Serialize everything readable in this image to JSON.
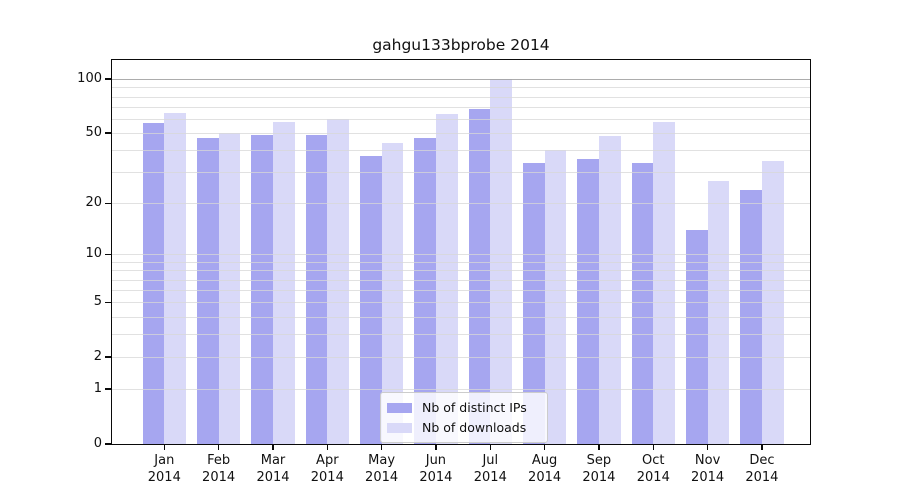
{
  "title": "gahgu133bprobe 2014",
  "chart_data": {
    "type": "bar",
    "title": "gahgu133bprobe 2014",
    "scale": "log1p",
    "categories": [
      "Jan 2014",
      "Feb 2014",
      "Mar 2014",
      "Apr 2014",
      "May 2014",
      "Jun 2014",
      "Jul 2014",
      "Aug 2014",
      "Sep 2014",
      "Oct 2014",
      "Nov 2014",
      "Dec 2014"
    ],
    "series": [
      {
        "name": "Nb of distinct IPs",
        "color": "#a6a6f0",
        "values": [
          57,
          47,
          49,
          49,
          37,
          47,
          68,
          34,
          36,
          34,
          14,
          24
        ]
      },
      {
        "name": "Nb of downloads",
        "color": "#d9d9f8",
        "values": [
          65,
          50,
          58,
          60,
          44,
          64,
          100,
          40,
          48,
          58,
          27,
          35
        ]
      }
    ],
    "ylabel": "",
    "xlabel": "",
    "ylim": [
      0,
      127
    ],
    "yticks": [
      0,
      1,
      2,
      5,
      10,
      20,
      50,
      100
    ],
    "gridlines": [
      1,
      2,
      3,
      4,
      5,
      6,
      7,
      8,
      9,
      10,
      20,
      30,
      40,
      50,
      60,
      70,
      80,
      90,
      100
    ],
    "grid": "on",
    "legend_position": "lower center"
  }
}
